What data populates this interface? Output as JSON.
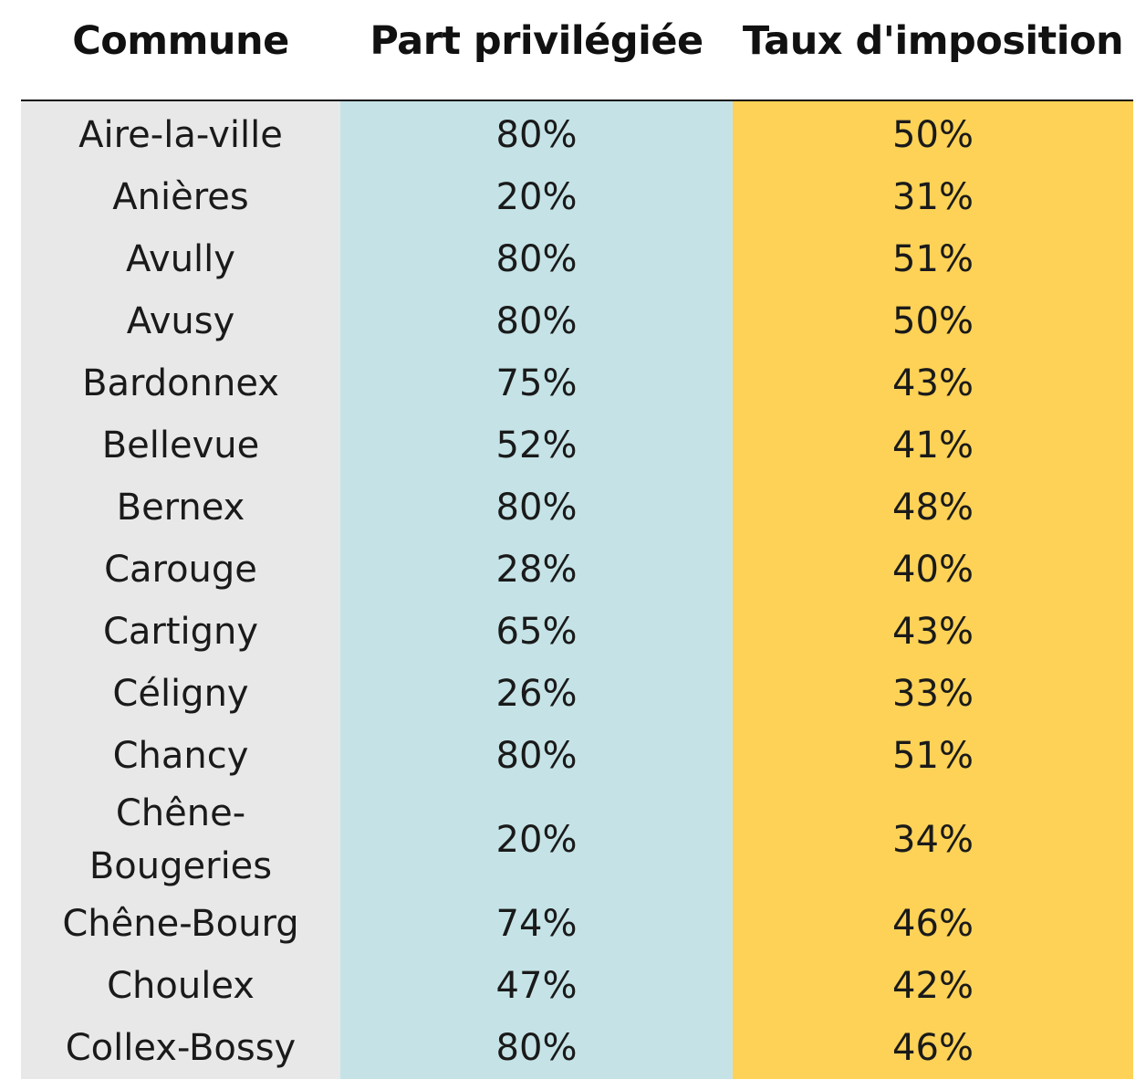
{
  "headers": {
    "commune": "Commune",
    "part": "Part privilégiée",
    "taux": "Taux d'imposition"
  },
  "colors": {
    "commune_bg": "#e8e8e8",
    "part_bg": "#c5e3e6",
    "taux_bg": "#fdd256"
  },
  "rows": [
    {
      "commune": "Aire-la-ville",
      "part": "80%",
      "taux": "50%"
    },
    {
      "commune": "Anières",
      "part": "20%",
      "taux": "31%"
    },
    {
      "commune": "Avully",
      "part": "80%",
      "taux": "51%"
    },
    {
      "commune": "Avusy",
      "part": "80%",
      "taux": "50%"
    },
    {
      "commune": "Bardonnex",
      "part": "75%",
      "taux": "43%"
    },
    {
      "commune": "Bellevue",
      "part": "52%",
      "taux": "41%"
    },
    {
      "commune": "Bernex",
      "part": "80%",
      "taux": "48%"
    },
    {
      "commune": "Carouge",
      "part": "28%",
      "taux": "40%"
    },
    {
      "commune": "Cartigny",
      "part": "65%",
      "taux": "43%"
    },
    {
      "commune": "Céligny",
      "part": "26%",
      "taux": "33%"
    },
    {
      "commune": "Chancy",
      "part": "80%",
      "taux": "51%"
    },
    {
      "commune": "Chêne-Bougeries",
      "commune_line1": "Chêne-",
      "commune_line2": "Bougeries",
      "part": "20%",
      "taux": "34%"
    },
    {
      "commune": "Chêne-Bourg",
      "part": "74%",
      "taux": "46%"
    },
    {
      "commune": "Choulex",
      "part": "47%",
      "taux": "42%"
    },
    {
      "commune": "Collex-Bossy",
      "part": "80%",
      "taux": "46%"
    }
  ]
}
